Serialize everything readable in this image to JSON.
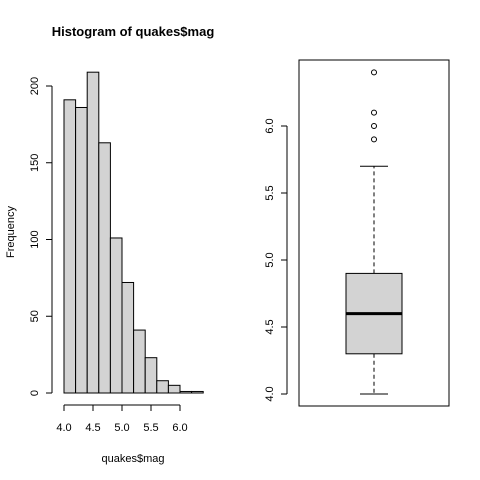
{
  "chart_data": [
    {
      "type": "bar",
      "title": "Histogram of quakes$mag",
      "xlabel": "quakes$mag",
      "ylabel": "Frequency",
      "bin_edges": [
        4.0,
        4.2,
        4.4,
        4.6,
        4.8,
        5.0,
        5.2,
        5.4,
        5.6,
        5.8,
        6.0,
        6.2,
        6.4
      ],
      "values": [
        191,
        186,
        209,
        163,
        101,
        72,
        41,
        23,
        8,
        5,
        1,
        1
      ],
      "xlim": [
        4.0,
        6.4
      ],
      "ylim": [
        0,
        209
      ],
      "x_ticks": [
        "4.0",
        "4.5",
        "5.0",
        "5.5",
        "6.0"
      ],
      "y_ticks": [
        "0",
        "50",
        "100",
        "150",
        "200"
      ],
      "bar_color": "#d3d3d3"
    },
    {
      "type": "box",
      "title": "",
      "ylabel": "",
      "min": 4.0,
      "q1": 4.3,
      "median": 4.6,
      "q3": 4.9,
      "max": 5.7,
      "outliers": [
        5.9,
        6.0,
        6.1,
        6.4
      ],
      "ylim": [
        4.0,
        6.4
      ],
      "y_ticks": [
        "4.0",
        "4.5",
        "5.0",
        "5.5",
        "6.0"
      ],
      "box_color": "#d3d3d3"
    }
  ]
}
